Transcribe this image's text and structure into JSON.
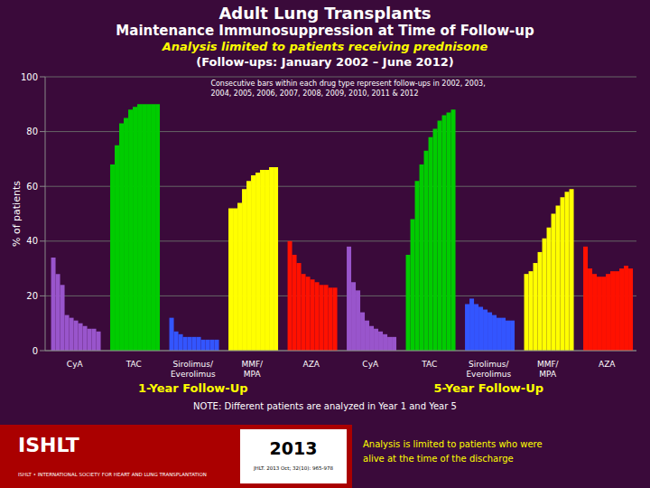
{
  "chart_data": {
    "type": "bar",
    "title": "Adult Lung Transplants",
    "subtitle": [
      "Maintenance Immunosuppression at Time of Follow-up",
      "Analysis limited to patients receiving prednisone",
      "(Follow-ups: January 2002 – June 2012)"
    ],
    "ylabel": "% of patients",
    "categories": [
      "CyA",
      "TAC",
      "Sirolimus/\nEverolimus",
      "MMF/\nMPA",
      "AZA",
      "CyA",
      "TAC",
      "Sirolimus/\nEverolimus",
      "MMF/\nMPA",
      "AZA"
    ],
    "colors": [
      "#9955cc",
      "#00cc00",
      "#3355ff",
      "#ffff00",
      "#ff1100",
      "#9955cc",
      "#00cc00",
      "#3355ff",
      "#ffff00",
      "#ff1100"
    ],
    "series": [
      {
        "values": [
          34,
          68,
          12,
          52,
          40,
          38,
          35,
          17,
          28,
          38
        ]
      },
      {
        "values": [
          28,
          75,
          7,
          52,
          35,
          25,
          48,
          19,
          29,
          30
        ]
      },
      {
        "values": [
          24,
          83,
          6,
          54,
          32,
          22,
          62,
          17,
          32,
          28
        ]
      },
      {
        "values": [
          13,
          85,
          5,
          59,
          28,
          14,
          68,
          16,
          36,
          27
        ]
      },
      {
        "values": [
          12,
          88,
          5,
          62,
          27,
          11,
          73,
          15,
          41,
          27
        ]
      },
      {
        "values": [
          11,
          89,
          5,
          64,
          26,
          9,
          78,
          14,
          45,
          28
        ]
      },
      {
        "values": [
          10,
          90,
          5,
          65,
          25,
          8,
          81,
          13,
          50,
          29
        ]
      },
      {
        "values": [
          9,
          90,
          4,
          66,
          24,
          7,
          84,
          12,
          53,
          29
        ]
      },
      {
        "values": [
          8,
          90,
          4,
          66,
          24,
          6,
          86,
          12,
          56,
          30
        ]
      },
      {
        "values": [
          8,
          90,
          4,
          67,
          23,
          5,
          87,
          11,
          58,
          31
        ]
      },
      {
        "values": [
          7,
          90,
          4,
          67,
          23,
          5,
          88,
          11,
          59,
          30
        ]
      }
    ],
    "ylim": [
      0,
      100
    ],
    "yticks": [
      0,
      20,
      40,
      60,
      80,
      100
    ],
    "grid": true,
    "annotations": [
      "Consecutive bars within each drug type represent follow-ups in 2002, 2003,\n2004, 2005, 2006, 2007, 2008, 2009, 2010, 2011 & 2012",
      "1-Year Follow-Up",
      "5-Year Follow-Up",
      "NOTE: Different patients are analyzed in Year 1 and Year 5",
      "Analysis is limited to patients who were\nalive at the time of the discharge",
      "ISHLT",
      "ISHLT • INTERNATIONAL SOCIETY FOR HEART AND LUNG TRANSPLANTATION",
      "2013",
      "JHLT. 2013 Oct; 32(10): 965-978"
    ]
  }
}
